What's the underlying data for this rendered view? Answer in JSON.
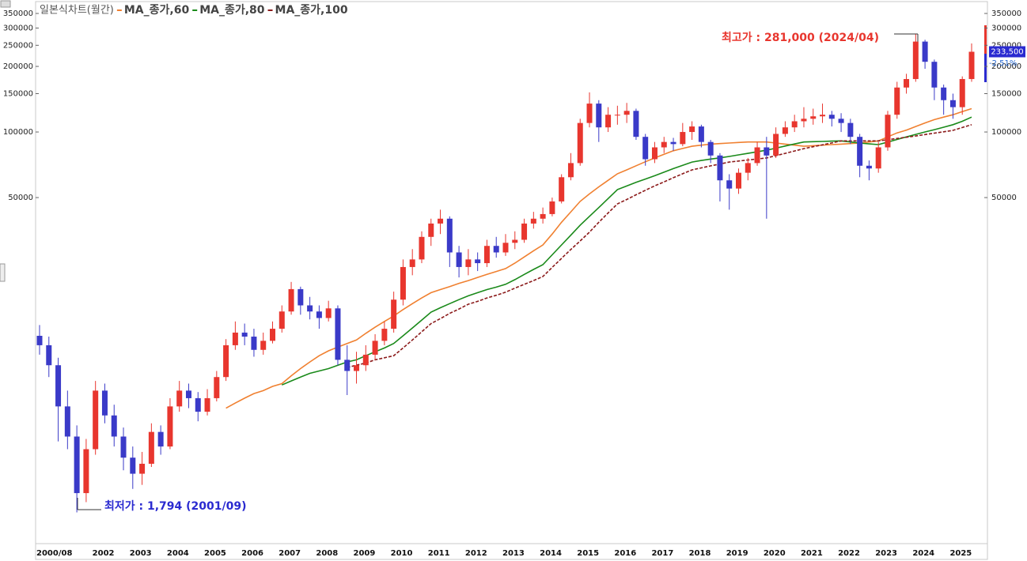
{
  "chart_data": {
    "type": "candlestick",
    "title": "일본식차트(월간)",
    "categories": [
      "2000/08",
      null,
      null,
      null,
      null,
      null,
      "2002",
      null,
      null,
      null,
      "2003",
      null,
      null,
      null,
      "2004",
      null,
      null,
      null,
      "2005",
      null,
      null,
      null,
      "2006",
      null,
      null,
      null,
      "2007",
      null,
      null,
      null,
      "2008",
      null,
      null,
      null,
      "2009",
      null,
      null,
      null,
      "2010",
      null,
      null,
      null,
      "2011",
      null,
      null,
      null,
      "2012",
      null,
      null,
      null,
      "2013",
      null,
      null,
      null,
      "2014",
      null,
      null,
      null,
      "2015",
      null,
      null,
      null,
      "2016",
      null,
      null,
      null,
      "2017",
      null,
      null,
      null,
      "2018",
      null,
      null,
      null,
      "2019",
      null,
      null,
      null,
      "2020",
      null,
      null,
      null,
      "2021",
      null,
      null,
      null,
      "2022",
      null,
      null,
      null,
      "2023",
      null,
      null,
      null,
      "2024",
      null,
      null,
      null,
      "2025",
      null,
      null
    ],
    "open": [
      11600,
      10500,
      8500,
      5500,
      4000,
      2200,
      3500,
      6500,
      5000,
      4000,
      3200,
      2700,
      3000,
      4200,
      3600,
      5500,
      6500,
      6000,
      5200,
      6000,
      7500,
      10500,
      12000,
      11500,
      10000,
      11000,
      12500,
      15000,
      19000,
      16000,
      15000,
      14000,
      15500,
      9000,
      8000,
      8500,
      9500,
      11000,
      12500,
      17000,
      24000,
      26000,
      33000,
      38000,
      40000,
      28000,
      24000,
      26000,
      25000,
      30000,
      28000,
      31000,
      32000,
      38000,
      40000,
      42000,
      48000,
      62000,
      72000,
      110000,
      135000,
      105000,
      120000,
      120000,
      125000,
      95000,
      75000,
      85000,
      90000,
      88000,
      100000,
      106000,
      90000,
      78000,
      60000,
      55000,
      65000,
      72000,
      85000,
      78000,
      98000,
      105000,
      112000,
      115000,
      118000,
      120000,
      115000,
      110000,
      95000,
      70000,
      68000,
      85000,
      120000,
      160000,
      175000,
      260000,
      210000,
      160000,
      140000,
      130000,
      175000
    ],
    "high": [
      13000,
      11500,
      9200,
      6500,
      4500,
      3900,
      7200,
      7000,
      5600,
      4400,
      3600,
      3400,
      4600,
      4500,
      6000,
      7200,
      7000,
      6400,
      6600,
      8000,
      11200,
      13500,
      13200,
      12500,
      12000,
      13500,
      16000,
      20500,
      19500,
      17500,
      16000,
      16800,
      16000,
      10500,
      9800,
      10500,
      11800,
      13500,
      18500,
      26000,
      29000,
      35000,
      40000,
      44000,
      41000,
      30000,
      29000,
      28000,
      32000,
      33000,
      34000,
      35000,
      40000,
      43000,
      45000,
      50000,
      64000,
      80000,
      115000,
      152000,
      140000,
      130000,
      132000,
      136000,
      128000,
      98000,
      90000,
      95000,
      94000,
      110000,
      112000,
      108000,
      92000,
      80000,
      64000,
      68000,
      76000,
      90000,
      95000,
      105000,
      112000,
      120000,
      130000,
      128000,
      135000,
      125000,
      122000,
      115000,
      98000,
      74000,
      90000,
      125000,
      170000,
      185000,
      281000,
      265000,
      215000,
      165000,
      150000,
      180000,
      255000
    ],
    "low": [
      9500,
      7500,
      3800,
      3500,
      1794,
      2000,
      3300,
      4600,
      3600,
      2800,
      2300,
      2400,
      2900,
      3300,
      3500,
      5200,
      5400,
      4700,
      5000,
      5800,
      7200,
      10000,
      10500,
      9300,
      9500,
      10700,
      12000,
      14500,
      14500,
      13800,
      12500,
      13500,
      8500,
      6200,
      7000,
      8000,
      9000,
      10500,
      12000,
      16000,
      22000,
      25000,
      30000,
      34000,
      24000,
      21500,
      22000,
      23000,
      24000,
      26500,
      27000,
      29000,
      31000,
      36000,
      38000,
      41000,
      47000,
      60000,
      70000,
      105000,
      90000,
      100000,
      108000,
      110000,
      92000,
      70000,
      72000,
      80000,
      82000,
      86000,
      92000,
      85000,
      72000,
      48000,
      44000,
      52000,
      60000,
      70000,
      40000,
      76000,
      95000,
      100000,
      105000,
      108000,
      110000,
      106000,
      100000,
      88000,
      62000,
      60000,
      65000,
      82000,
      115000,
      150000,
      170000,
      195000,
      140000,
      120000,
      115000,
      120000,
      170000
    ],
    "close": [
      10500,
      8500,
      5500,
      4000,
      2200,
      3500,
      6500,
      5000,
      4000,
      3200,
      2700,
      3000,
      4200,
      3600,
      5500,
      6500,
      6000,
      5200,
      6000,
      7500,
      10500,
      12000,
      11500,
      10000,
      11000,
      12500,
      15000,
      19000,
      16000,
      15000,
      14000,
      15500,
      9000,
      8000,
      8500,
      9500,
      11000,
      12500,
      17000,
      24000,
      26000,
      33000,
      38000,
      40000,
      28000,
      24000,
      26000,
      25000,
      30000,
      28000,
      31000,
      32000,
      38000,
      40000,
      42000,
      48000,
      62000,
      72000,
      110000,
      135000,
      105000,
      120000,
      120000,
      125000,
      95000,
      75000,
      85000,
      90000,
      88000,
      100000,
      106000,
      90000,
      78000,
      60000,
      55000,
      65000,
      72000,
      85000,
      78000,
      98000,
      105000,
      112000,
      115000,
      118000,
      120000,
      115000,
      110000,
      95000,
      70000,
      68000,
      85000,
      120000,
      160000,
      175000,
      260000,
      210000,
      160000,
      140000,
      130000,
      175000,
      233500
    ],
    "up_color": "#e8362e",
    "down_color": "#3a3ac8",
    "series": [
      {
        "name": "MA_종가,60",
        "color": "#f08030",
        "dashed": false,
        "values": [
          null,
          null,
          null,
          null,
          null,
          null,
          null,
          null,
          null,
          null,
          null,
          null,
          null,
          null,
          null,
          null,
          null,
          null,
          null,
          null,
          5400,
          5700,
          6000,
          6300,
          6500,
          6800,
          7000,
          7600,
          8200,
          8800,
          9400,
          9900,
          10300,
          10700,
          11100,
          11900,
          12700,
          13500,
          14300,
          15300,
          16300,
          17300,
          18300,
          18900,
          19500,
          20200,
          20800,
          21500,
          22200,
          22900,
          23600,
          25000,
          26700,
          28500,
          30300,
          34000,
          38500,
          43000,
          48000,
          52000,
          56000,
          60000,
          64300,
          67000,
          70000,
          73000,
          76000,
          79000,
          82000,
          84000,
          86000,
          87000,
          88000,
          88500,
          89000,
          89500,
          90000,
          90000,
          90000,
          89000,
          88000,
          87000,
          86000,
          86500,
          87000,
          87500,
          88000,
          88500,
          89000,
          90000,
          91000,
          95000,
          99000,
          102000,
          106000,
          110000,
          114000,
          117000,
          120000,
          124000,
          128000
        ]
      },
      {
        "name": "MA_종가,80",
        "color": "#1a8a1a",
        "dashed": false,
        "values": [
          null,
          null,
          null,
          null,
          null,
          null,
          null,
          null,
          null,
          null,
          null,
          null,
          null,
          null,
          null,
          null,
          null,
          null,
          null,
          null,
          null,
          null,
          null,
          null,
          null,
          null,
          6900,
          7200,
          7500,
          7800,
          8000,
          8200,
          8500,
          8800,
          9000,
          9400,
          9800,
          10200,
          10700,
          11600,
          12600,
          13700,
          14900,
          15600,
          16300,
          17000,
          17700,
          18300,
          18900,
          19400,
          20000,
          21000,
          22200,
          23400,
          24600,
          27300,
          30300,
          33600,
          37300,
          41000,
          45000,
          49500,
          54400,
          56500,
          58700,
          60800,
          63000,
          65400,
          67900,
          70300,
          72800,
          74000,
          75100,
          76100,
          77200,
          78500,
          79800,
          81100,
          82500,
          84300,
          86200,
          88100,
          90000,
          90300,
          90500,
          90800,
          91000,
          90000,
          89000,
          88200,
          87500,
          89900,
          92400,
          94900,
          97500,
          100000,
          102500,
          105200,
          108000,
          112000,
          117000
        ]
      },
      {
        "name": "MA_종가,100",
        "color": "#8b1a1a",
        "dashed": true,
        "values": [
          null,
          null,
          null,
          null,
          null,
          null,
          null,
          null,
          null,
          null,
          null,
          null,
          null,
          null,
          null,
          null,
          null,
          null,
          null,
          null,
          null,
          null,
          null,
          null,
          null,
          null,
          null,
          null,
          null,
          null,
          null,
          null,
          null,
          8300,
          8500,
          8700,
          9000,
          9200,
          9400,
          10200,
          11100,
          12100,
          13200,
          13900,
          14700,
          15400,
          16200,
          16700,
          17300,
          17800,
          18400,
          19200,
          20000,
          20800,
          21700,
          23900,
          26300,
          28900,
          31600,
          34700,
          38500,
          42500,
          46800,
          49000,
          51500,
          54000,
          56600,
          59000,
          61700,
          64300,
          67000,
          68400,
          69900,
          71300,
          72800,
          73600,
          74400,
          75200,
          76000,
          77900,
          79800,
          81800,
          83900,
          85600,
          87300,
          89100,
          91000,
          91000,
          91000,
          91000,
          91000,
          92200,
          93400,
          94600,
          95900,
          97300,
          98800,
          100200,
          101700,
          104800,
          108000
        ]
      }
    ],
    "ylim": [
      1290,
      387000
    ],
    "yticks": [
      50000,
      100000,
      150000,
      200000,
      250000,
      300000,
      350000
    ],
    "log_scale": true,
    "annotations": [
      {
        "text": "최고가 : 281,000 (2024/04)",
        "color": "#e8362e"
      },
      {
        "text": "최저가 : 1,794 (2001/09)",
        "color": "#2a2ad0"
      }
    ],
    "last_price": {
      "value": 233500,
      "label": "233,500"
    },
    "change_label": "-2.51%"
  }
}
